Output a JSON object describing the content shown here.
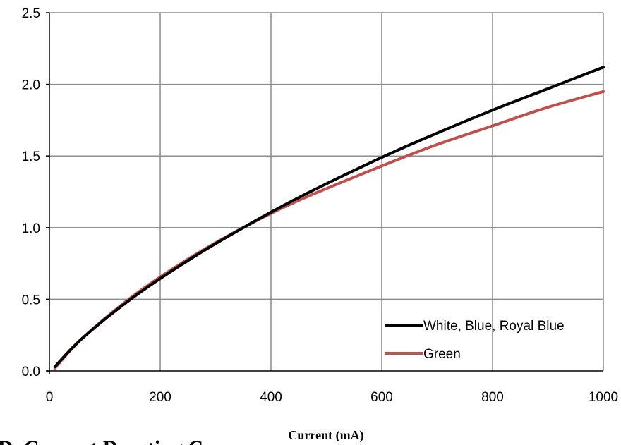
{
  "chart_data": {
    "type": "line",
    "title": "",
    "xlabel": "Current (mA)",
    "ylabel": "",
    "xlim": [
      0,
      1000
    ],
    "ylim": [
      0,
      2.5
    ],
    "x_ticks": [
      "0",
      "200",
      "400",
      "600",
      "800",
      "1000"
    ],
    "y_ticks": [
      "0.0",
      "0.5",
      "1.0",
      "1.5",
      "2.0",
      "2.5"
    ],
    "grid": true,
    "legend_position": "bottom-right",
    "x": [
      10,
      60,
      150,
      250,
      350,
      450,
      600,
      700,
      800,
      900,
      1000
    ],
    "series": [
      {
        "name": "White, Blue, Royal Blue",
        "color": "#000000",
        "values": [
          0.03,
          0.23,
          0.51,
          0.77,
          1.0,
          1.21,
          1.49,
          1.66,
          1.82,
          1.97,
          2.12
        ]
      },
      {
        "name": "Green",
        "color": "#c0504d",
        "values": [
          0.02,
          0.23,
          0.52,
          0.78,
          1.0,
          1.19,
          1.43,
          1.58,
          1.71,
          1.84,
          1.95
        ]
      }
    ],
    "caption_fragment": "D. Current Derating C"
  }
}
